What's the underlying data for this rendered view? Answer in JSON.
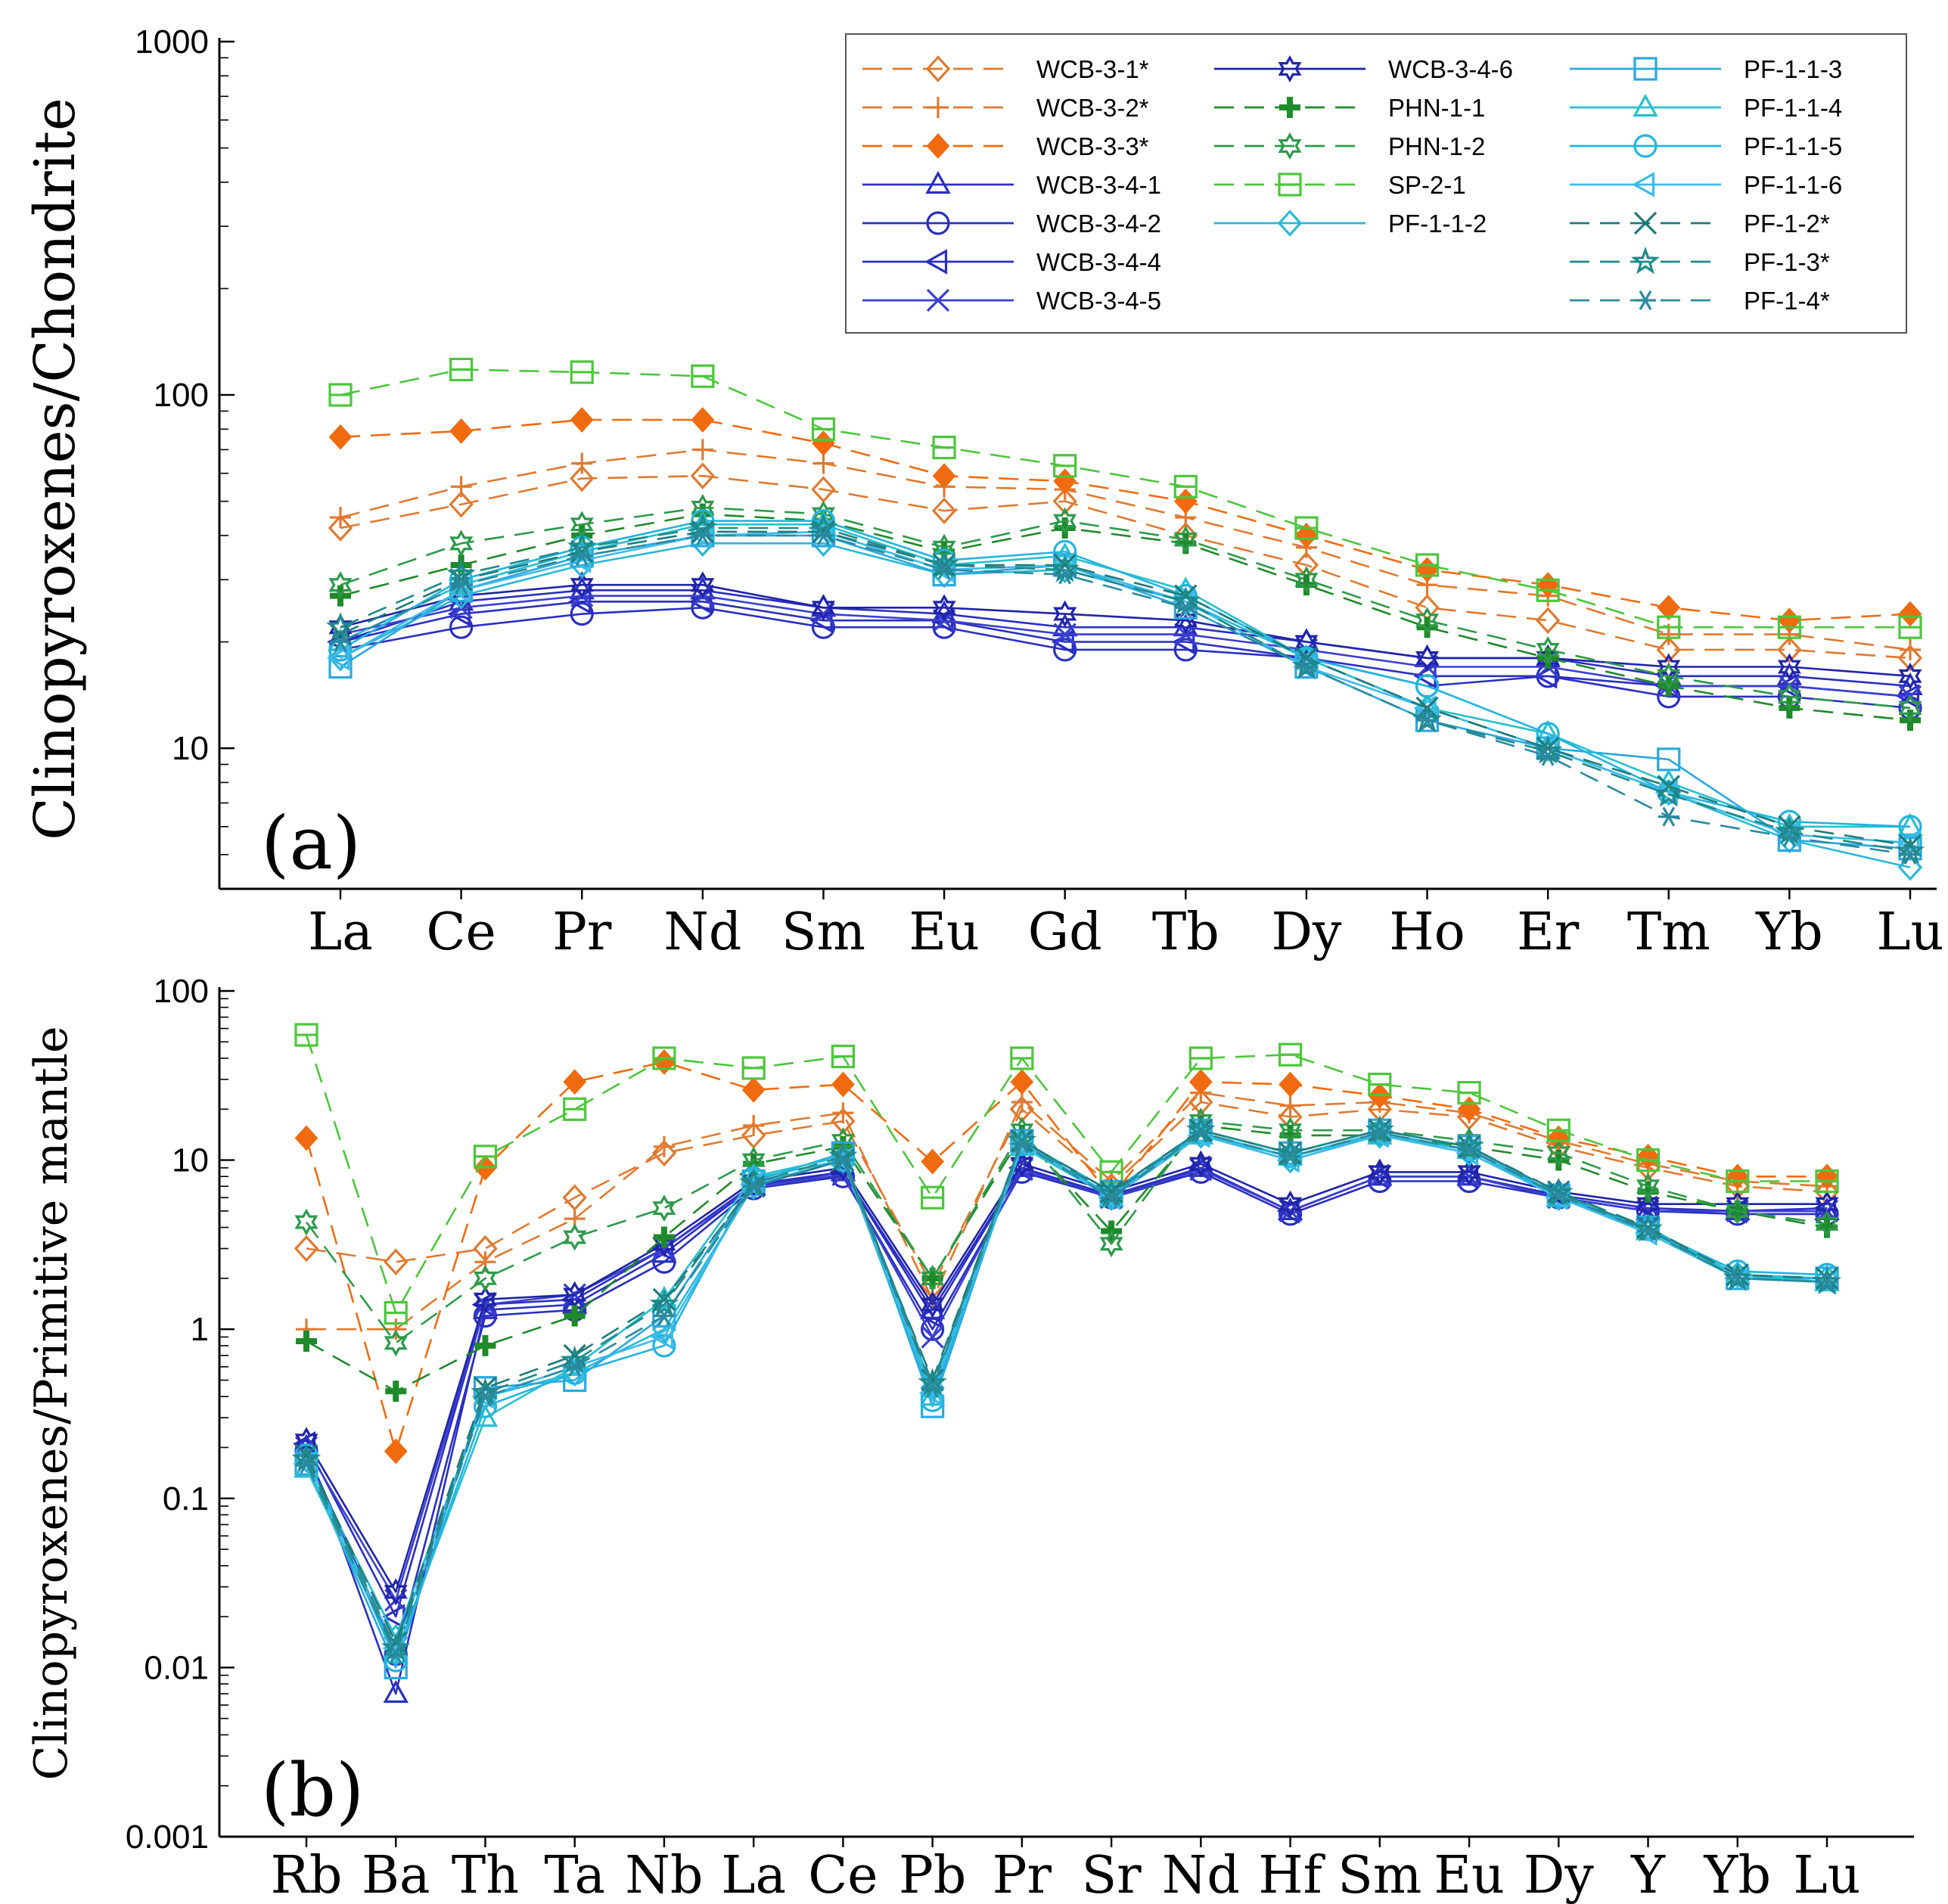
{
  "chart_data": [
    {
      "id": "a",
      "type": "line",
      "panel_label": "(a)",
      "ylabel": "Clinopyroxenes/Chondrite",
      "yscale": "log",
      "ylim": [
        4,
        1000
      ],
      "ytick_labels": [
        "10",
        "100",
        "1000"
      ],
      "categories": [
        "La",
        "Ce",
        "Pr",
        "Nd",
        "Sm",
        "Eu",
        "Gd",
        "Tb",
        "Dy",
        "Ho",
        "Er",
        "Tm",
        "Yb",
        "Lu"
      ],
      "series": [
        {
          "name": "WCB-3-1*",
          "values": [
            42,
            49,
            58,
            59,
            54,
            47,
            50,
            40,
            33,
            25,
            23,
            19,
            19,
            18
          ]
        },
        {
          "name": "WCB-3-2*",
          "values": [
            45,
            55,
            64,
            70,
            64,
            55,
            54,
            45,
            37,
            29,
            27,
            21,
            21,
            19
          ]
        },
        {
          "name": "WCB-3-3*",
          "values": [
            76,
            79,
            85,
            85,
            73,
            59,
            57,
            50,
            40,
            32,
            29,
            25,
            23,
            24
          ]
        },
        {
          "name": "WCB-3-4-1",
          "values": [
            20,
            26,
            28,
            28,
            25,
            24,
            22,
            22,
            20,
            18,
            18,
            16,
            16,
            15
          ]
        },
        {
          "name": "WCB-3-4-2",
          "values": [
            19,
            22,
            24,
            25,
            22,
            22,
            19,
            19,
            18,
            15,
            16,
            14,
            14,
            13
          ]
        },
        {
          "name": "WCB-3-4-4",
          "values": [
            20,
            24,
            26,
            26,
            23,
            23,
            20,
            20,
            18,
            16,
            16,
            15,
            15,
            14
          ]
        },
        {
          "name": "WCB-3-4-5",
          "values": [
            21,
            25,
            27,
            27,
            24,
            23,
            21,
            21,
            19,
            17,
            17,
            15,
            15,
            14
          ]
        },
        {
          "name": "WCB-3-4-6",
          "values": [
            22,
            27,
            29,
            29,
            25,
            25,
            24,
            23,
            20,
            18,
            18,
            17,
            17,
            16
          ]
        },
        {
          "name": "PHN-1-1",
          "values": [
            27,
            33,
            40,
            46,
            44,
            36,
            42,
            38,
            29,
            22,
            18,
            15,
            13,
            12
          ]
        },
        {
          "name": "PHN-1-2",
          "values": [
            29,
            38,
            43,
            48,
            46,
            37,
            44,
            39,
            30,
            23,
            19,
            16,
            14,
            13
          ]
        },
        {
          "name": "SP-2-1",
          "values": [
            100,
            118,
            116,
            113,
            80,
            71,
            63,
            55,
            42,
            33,
            28,
            22,
            22,
            22
          ]
        },
        {
          "name": "PF-1-1-2",
          "values": [
            18,
            27,
            33,
            38,
            38,
            31,
            32,
            26,
            18,
            13,
            10,
            7.5,
            5.5,
            4.6
          ]
        },
        {
          "name": "PF-1-1-3",
          "values": [
            17,
            28,
            35,
            40,
            40,
            31,
            33,
            25,
            17,
            12,
            10,
            9.3,
            5.5,
            5.2
          ]
        },
        {
          "name": "PF-1-1-4",
          "values": [
            20,
            29,
            36,
            43,
            43,
            33,
            35,
            28,
            18,
            13,
            11,
            8,
            6,
            6
          ]
        },
        {
          "name": "PF-1-1-5",
          "values": [
            19,
            30,
            37,
            44,
            44,
            34,
            36,
            27,
            18,
            15,
            11,
            7.5,
            6.2,
            6
          ]
        },
        {
          "name": "PF-1-1-6",
          "values": [
            18,
            28,
            34,
            40,
            41,
            32,
            33,
            26,
            17,
            13,
            10,
            7.5,
            5.7,
            5.4
          ]
        },
        {
          "name": "PF-1-2*",
          "values": [
            21,
            30,
            36,
            41,
            41,
            33,
            33,
            27,
            18,
            13,
            10,
            7.8,
            6,
            5.3
          ]
        },
        {
          "name": "PF-1-3*",
          "values": [
            22,
            31,
            37,
            42,
            42,
            33,
            32,
            26,
            17,
            12,
            9.8,
            7.4,
            5.8,
            5.1
          ]
        },
        {
          "name": "PF-1-4*",
          "values": [
            20,
            29,
            35,
            40,
            40,
            32,
            31,
            25,
            17,
            12,
            9.5,
            6.4,
            5.6,
            5
          ]
        }
      ],
      "legend": {
        "placement": "top-right",
        "entries": [
          "WCB-3-1*",
          "WCB-3-2*",
          "WCB-3-3*",
          "WCB-3-4-1",
          "WCB-3-4-2",
          "WCB-3-4-4",
          "WCB-3-4-5",
          "WCB-3-4-6",
          "PHN-1-1",
          "PHN-1-2",
          "SP-2-1",
          "PF-1-1-2",
          "PF-1-1-3",
          "PF-1-1-4",
          "PF-1-1-5",
          "PF-1-1-6",
          "PF-1-2*",
          "PF-1-3*",
          "PF-1-4*"
        ]
      }
    },
    {
      "id": "b",
      "type": "line",
      "panel_label": "(b)",
      "ylabel": "Clinopyroxenes/Primitive mantle",
      "yscale": "log",
      "ylim": [
        0.001,
        100
      ],
      "ytick_labels": [
        "0.001",
        "0.01",
        "0.1",
        "1",
        "10",
        "100"
      ],
      "categories": [
        "Rb",
        "Ba",
        "Th",
        "Ta",
        "Nb",
        "La",
        "Ce",
        "Pb",
        "Pr",
        "Sr",
        "Nd",
        "Hf",
        "Sm",
        "Eu",
        "Dy",
        "Y",
        "Yb",
        "Lu"
      ],
      "series": [
        {
          "name": "WCB-3-1*",
          "values": [
            3,
            2.5,
            3,
            6,
            11,
            14,
            17,
            1.8,
            20,
            7,
            22,
            18,
            20,
            18,
            12,
            9,
            7,
            6.5
          ]
        },
        {
          "name": "WCB-3-2*",
          "values": [
            1,
            1,
            2.5,
            4.5,
            12,
            16,
            19,
            1.5,
            22,
            7.5,
            25,
            21,
            22,
            19,
            13,
            9.5,
            7.5,
            7
          ]
        },
        {
          "name": "WCB-3-3*",
          "values": [
            13.5,
            0.19,
            9,
            29,
            38,
            26,
            28,
            9.8,
            29,
            6,
            29,
            28,
            24,
            20,
            13.5,
            10.5,
            8,
            8
          ]
        },
        {
          "name": "WCB-3-4-1",
          "values": [
            0.2,
            0.007,
            1.3,
            1.4,
            2.8,
            7,
            8.5,
            1.3,
            9,
            6,
            9,
            5,
            8,
            8,
            6,
            5,
            5,
            5
          ]
        },
        {
          "name": "WCB-3-4-2",
          "values": [
            0.19,
            0.012,
            1.2,
            1.3,
            2.5,
            6.8,
            8,
            1.0,
            8.5,
            6,
            8.5,
            4.8,
            7.5,
            7.5,
            6,
            5,
            4.8,
            4.8
          ]
        },
        {
          "name": "WCB-3-4-4",
          "values": [
            0.21,
            0.02,
            1.4,
            1.5,
            3,
            7.2,
            8.5,
            1.2,
            9,
            6.2,
            9,
            5,
            8,
            8,
            6.2,
            5.2,
            5,
            5.2
          ]
        },
        {
          "name": "WCB-3-4-5",
          "values": [
            0.2,
            0.025,
            1.4,
            1.6,
            3,
            7,
            8.2,
            0.9,
            8.8,
            6,
            8.8,
            5,
            8,
            8,
            6,
            5,
            5,
            5
          ]
        },
        {
          "name": "WCB-3-4-6",
          "values": [
            0.22,
            0.028,
            1.5,
            1.6,
            3.2,
            7.5,
            9,
            1.4,
            9.5,
            6.5,
            9.5,
            5.5,
            8.5,
            8.5,
            6.5,
            5.5,
            5.5,
            5.5
          ]
        },
        {
          "name": "PHN-1-1",
          "values": [
            0.85,
            0.43,
            0.8,
            1.2,
            3.5,
            9.5,
            12,
            2,
            14,
            3.8,
            16,
            14,
            14,
            12,
            10,
            6.5,
            5,
            4
          ]
        },
        {
          "name": "PHN-1-2",
          "values": [
            4.3,
            0.83,
            2,
            3.5,
            5.2,
            10,
            13,
            2,
            15,
            3.2,
            17,
            15,
            15,
            13,
            11,
            7,
            5,
            4.2
          ]
        },
        {
          "name": "SP-2-1",
          "values": [
            55,
            1.25,
            10.5,
            20,
            40,
            35,
            41,
            6,
            40,
            8.5,
            40,
            42,
            28,
            25,
            15,
            10,
            7.5,
            7.5
          ]
        },
        {
          "name": "PF-1-1-2",
          "values": [
            0.17,
            0.015,
            0.4,
            0.55,
            1,
            7,
            10,
            0.45,
            13,
            6,
            14,
            10,
            14,
            11,
            6,
            4,
            2.1,
            2
          ]
        },
        {
          "name": "PF-1-1-3",
          "values": [
            0.16,
            0.01,
            0.45,
            0.5,
            1.2,
            7.5,
            11,
            0.35,
            13,
            6.5,
            15,
            11,
            15,
            12,
            6.2,
            4,
            2,
            2
          ]
        },
        {
          "name": "PF-1-1-4",
          "values": [
            0.15,
            0.012,
            0.3,
            0.6,
            1.5,
            8,
            10.5,
            0.4,
            12,
            6,
            14,
            10.5,
            14,
            11.5,
            6,
            3.8,
            2.1,
            1.9
          ]
        },
        {
          "name": "PF-1-1-5",
          "values": [
            0.18,
            0.011,
            0.35,
            0.55,
            0.8,
            7.8,
            10,
            0.38,
            12.5,
            6.2,
            14.5,
            10.5,
            14.5,
            11.5,
            6.1,
            3.9,
            2.2,
            2.1
          ]
        },
        {
          "name": "PF-1-1-6",
          "values": [
            0.16,
            0.013,
            0.4,
            0.6,
            0.9,
            7.2,
            10,
            0.42,
            12.5,
            6,
            14,
            10,
            14,
            11,
            6,
            3.7,
            2,
            1.9
          ]
        },
        {
          "name": "PF-1-2*",
          "values": [
            0.18,
            0.014,
            0.45,
            0.7,
            1.5,
            7,
            10,
            0.5,
            13,
            6.5,
            15,
            11,
            15,
            12,
            6.5,
            4,
            2.1,
            2
          ]
        },
        {
          "name": "PF-1-3*",
          "values": [
            0.17,
            0.013,
            0.42,
            0.65,
            1.4,
            7.3,
            10.5,
            0.48,
            13,
            6.3,
            15,
            11,
            15,
            12,
            6.4,
            3.9,
            2,
            1.9
          ]
        },
        {
          "name": "PF-1-4*",
          "values": [
            0.16,
            0.012,
            0.4,
            0.6,
            1.2,
            7,
            10,
            0.45,
            12.5,
            6,
            14.5,
            10.5,
            14.5,
            11.5,
            6.2,
            3.8,
            2,
            1.9
          ]
        }
      ]
    }
  ],
  "series_style": {
    "WCB-3-1*": {
      "color": "#e07a30",
      "dash": true,
      "marker": "diamond-open"
    },
    "WCB-3-2*": {
      "color": "#e07a30",
      "dash": true,
      "marker": "plus"
    },
    "WCB-3-3*": {
      "color": "#f06b10",
      "dash": true,
      "marker": "diamond-filled"
    },
    "WCB-3-4-1": {
      "color": "#2a2fc0",
      "dash": false,
      "marker": "triangle-up"
    },
    "WCB-3-4-2": {
      "color": "#2a2fc0",
      "dash": false,
      "marker": "circle"
    },
    "WCB-3-4-4": {
      "color": "#2a2fc0",
      "dash": false,
      "marker": "triangle-left"
    },
    "WCB-3-4-5": {
      "color": "#3a3fd0",
      "dash": false,
      "marker": "x"
    },
    "WCB-3-4-6": {
      "color": "#1f24a8",
      "dash": false,
      "marker": "star6"
    },
    "PHN-1-1": {
      "color": "#1f8a2a",
      "dash": true,
      "marker": "cross-bold"
    },
    "PHN-1-2": {
      "color": "#2d9a4a",
      "dash": true,
      "marker": "star6"
    },
    "SP-2-1": {
      "color": "#4cc63c",
      "dash": true,
      "marker": "square-line"
    },
    "PF-1-1-2": {
      "color": "#2ab8d8",
      "dash": false,
      "marker": "diamond-open"
    },
    "PF-1-1-3": {
      "color": "#2aa8e0",
      "dash": false,
      "marker": "square"
    },
    "PF-1-1-4": {
      "color": "#28c0d0",
      "dash": false,
      "marker": "triangle-up"
    },
    "PF-1-1-5": {
      "color": "#22b4e0",
      "dash": false,
      "marker": "circle"
    },
    "PF-1-1-6": {
      "color": "#3cbbe8",
      "dash": false,
      "marker": "triangle-left"
    },
    "PF-1-2*": {
      "color": "#1f7a7a",
      "dash": true,
      "marker": "x"
    },
    "PF-1-3*": {
      "color": "#1f8a8a",
      "dash": true,
      "marker": "star5"
    },
    "PF-1-4*": {
      "color": "#2a8aa0",
      "dash": true,
      "marker": "asterisk"
    }
  }
}
